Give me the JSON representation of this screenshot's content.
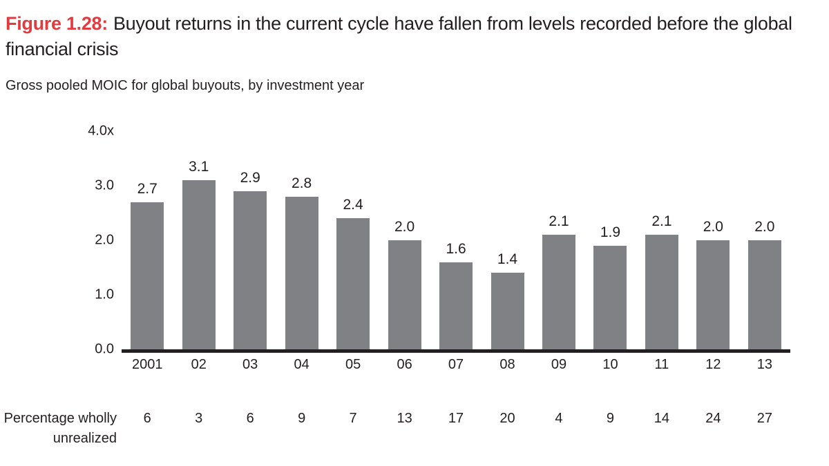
{
  "figure": {
    "label": "Figure 1.28:",
    "title": "Buyout returns in the current cycle have fallen from levels recorded before the global financial crisis",
    "subtitle": "Gross pooled MOIC for global buyouts, by investment year"
  },
  "chart_data": {
    "type": "bar",
    "title": "Gross pooled MOIC for global buyouts, by investment year",
    "categories": [
      "2001",
      "02",
      "03",
      "04",
      "05",
      "06",
      "07",
      "08",
      "09",
      "10",
      "11",
      "12",
      "13"
    ],
    "values": [
      2.7,
      3.1,
      2.9,
      2.8,
      2.4,
      2.0,
      1.6,
      1.4,
      2.1,
      1.9,
      2.1,
      2.0,
      2.0
    ],
    "labels": [
      "2.7",
      "3.1",
      "2.9",
      "2.8",
      "2.4",
      "2.0",
      "1.6",
      "1.4",
      "2.1",
      "1.9",
      "2.1",
      "2.0",
      "2.0"
    ],
    "xlabel": "",
    "ylabel": "",
    "ylim": [
      0,
      4.0
    ],
    "yticks": [
      {
        "value": 4.0,
        "label": "4.0x"
      },
      {
        "value": 3.0,
        "label": "3.0"
      },
      {
        "value": 2.0,
        "label": "2.0"
      },
      {
        "value": 1.0,
        "label": "1.0"
      },
      {
        "value": 0.0,
        "label": "0.0"
      }
    ],
    "grid": false,
    "legend_position": "none",
    "bar_color": "#808184",
    "axis_color": "#231f20",
    "footer_row": {
      "label": "Percentage wholly unrealized",
      "label_lines": [
        "Percentage wholly",
        "unrealized"
      ],
      "values": [
        "6",
        "3",
        "6",
        "9",
        "7",
        "13",
        "17",
        "20",
        "4",
        "9",
        "14",
        "24",
        "27"
      ]
    }
  },
  "colors": {
    "figure_label_red": "#e13b40",
    "text": "#231f20",
    "bar_grey": "#808184",
    "axis_black": "#231f20",
    "background": "#ffffff"
  }
}
